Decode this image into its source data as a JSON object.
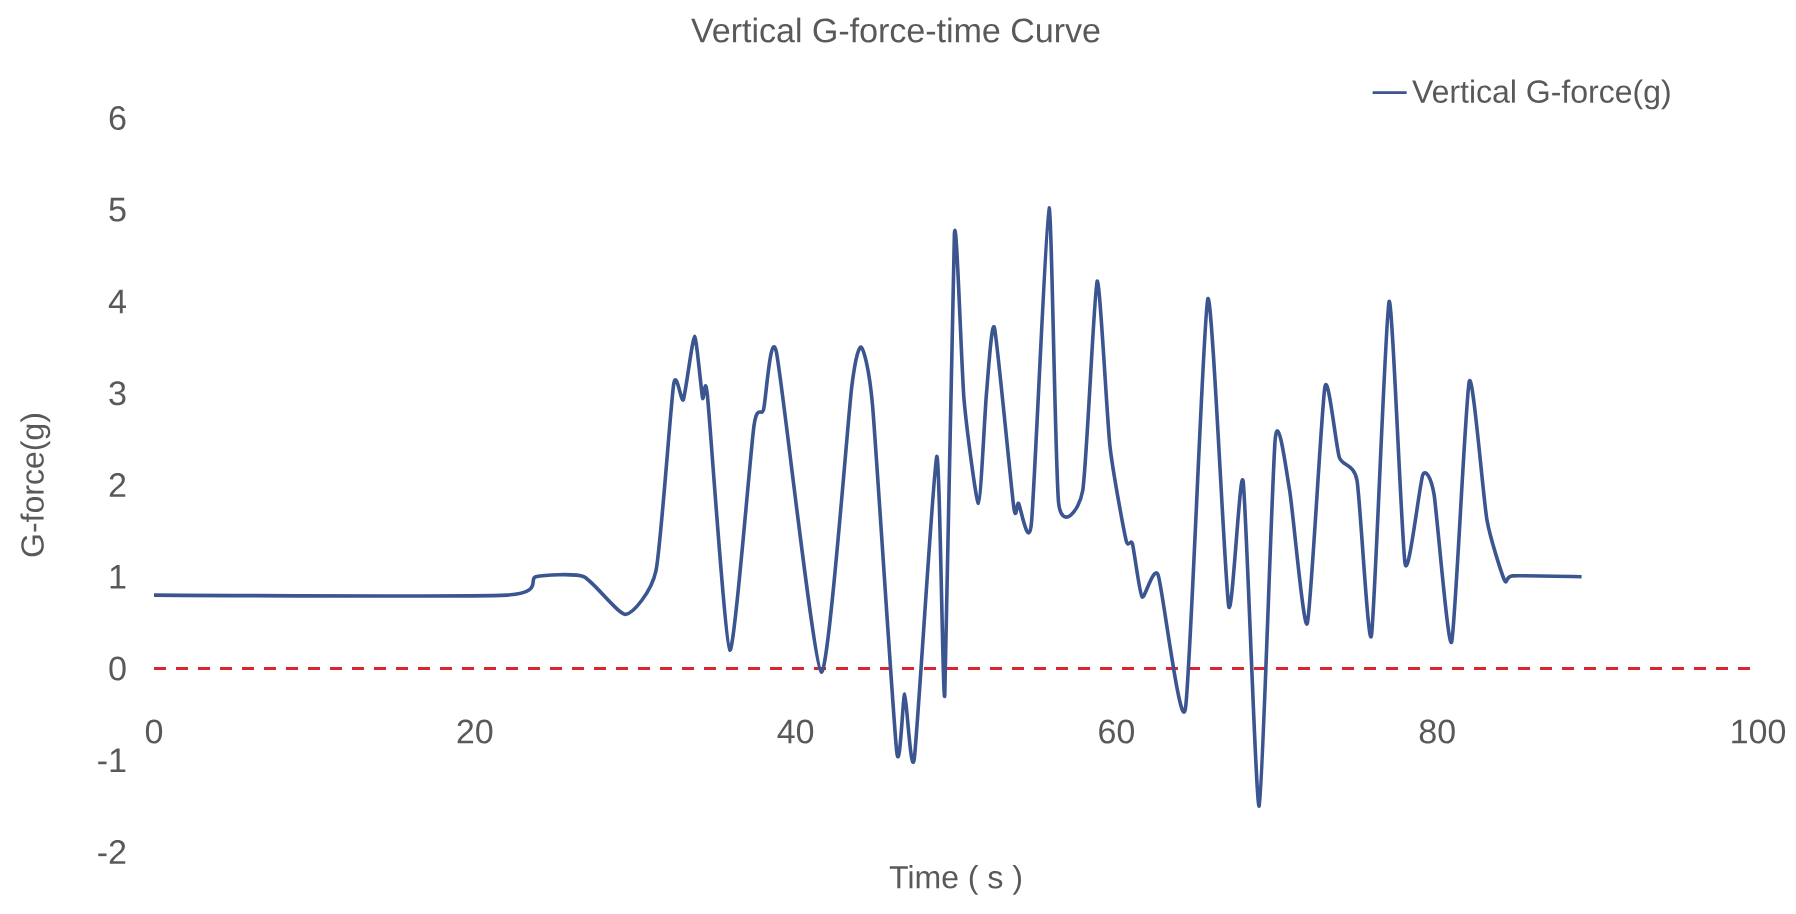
{
  "chart_data": {
    "type": "line",
    "title": "Vertical G-force-time Curve",
    "xlabel": "Time ( s )",
    "ylabel": "G-force(g)",
    "x": [
      0,
      22,
      23.8,
      26.8,
      29.4,
      31.3,
      32.4,
      33.0,
      33.7,
      34.2,
      34.5,
      35.9,
      37.4,
      38.0,
      38.8,
      41.6,
      43.5,
      44.1,
      44.8,
      46.3,
      46.8,
      47.4,
      48.8,
      49.3,
      49.9,
      50.5,
      51.4,
      51.9,
      52.4,
      53.6,
      53.9,
      54.7,
      55.8,
      56.4,
      57.9,
      58.8,
      59.6,
      60.6,
      61.0,
      61.6,
      62.6,
      64.3,
      65.7,
      67.0,
      67.9,
      68.9,
      69.9,
      70.8,
      71.9,
      73.0,
      73.9,
      75.0,
      75.9,
      77.0,
      78.0,
      79.1,
      79.8,
      80.9,
      82.0,
      83.1,
      84.2,
      84.7,
      89.0
    ],
    "series": [
      {
        "name": "Vertical G-force(g)",
        "color": "#3b5590",
        "values": [
          0.8,
          0.8,
          1.0,
          1.0,
          0.59,
          1.07,
          3.1,
          2.93,
          3.62,
          2.95,
          2.98,
          0.2,
          2.64,
          2.82,
          3.45,
          -0.04,
          3.07,
          3.5,
          2.86,
          -0.9,
          -0.28,
          -0.98,
          2.31,
          -0.29,
          4.74,
          2.93,
          1.8,
          3.0,
          3.71,
          1.76,
          1.8,
          1.58,
          5.02,
          1.8,
          1.94,
          4.22,
          2.42,
          1.4,
          1.36,
          0.78,
          1.02,
          -0.44,
          4.03,
          0.68,
          2.04,
          -1.5,
          2.5,
          1.94,
          0.49,
          3.07,
          2.3,
          2.05,
          0.36,
          4.0,
          1.14,
          2.11,
          1.9,
          0.29,
          3.13,
          1.62,
          0.96,
          1.01,
          1.0
        ]
      }
    ],
    "xlim": [
      0,
      100
    ],
    "xticks": [
      0,
      20,
      40,
      60,
      80,
      100
    ],
    "ylim": [
      -2,
      6
    ],
    "yticks": [
      -2,
      -1,
      0,
      1,
      2,
      3,
      4,
      5,
      6
    ],
    "ref_lines": [
      {
        "axis": "y",
        "value": 0,
        "color": "#d9262e",
        "line_style": "dashed"
      }
    ],
    "legend": "top right",
    "line_style": "solid"
  }
}
